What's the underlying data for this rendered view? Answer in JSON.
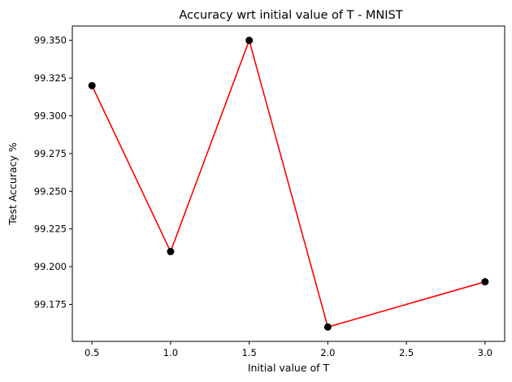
{
  "chart_data": {
    "type": "line",
    "title": "Accuracy wrt initial value of T - MNIST",
    "xlabel": "Initial value of T",
    "ylabel": "Test Accuracy %",
    "x": [
      0.5,
      1.0,
      1.5,
      2.0,
      3.0
    ],
    "series": [
      {
        "values": [
          99.32,
          99.21,
          99.35,
          99.16,
          99.19
        ]
      }
    ],
    "xlim": [
      0.375,
      3.125
    ],
    "ylim": [
      99.1505,
      99.3595
    ],
    "xticks": [
      0.5,
      1.0,
      1.5,
      2.0,
      2.5,
      3.0
    ],
    "xtick_labels": [
      "0.5",
      "1.0",
      "1.5",
      "2.0",
      "2.5",
      "3.0"
    ],
    "yticks": [
      99.175,
      99.2,
      99.225,
      99.25,
      99.275,
      99.3,
      99.325,
      99.35
    ],
    "ytick_labels": [
      "99.175",
      "99.200",
      "99.225",
      "99.250",
      "99.275",
      "99.300",
      "99.325",
      "99.350"
    ],
    "line_color": "#ff0000",
    "marker_color": "#000000",
    "grid": false,
    "legend": "none"
  }
}
